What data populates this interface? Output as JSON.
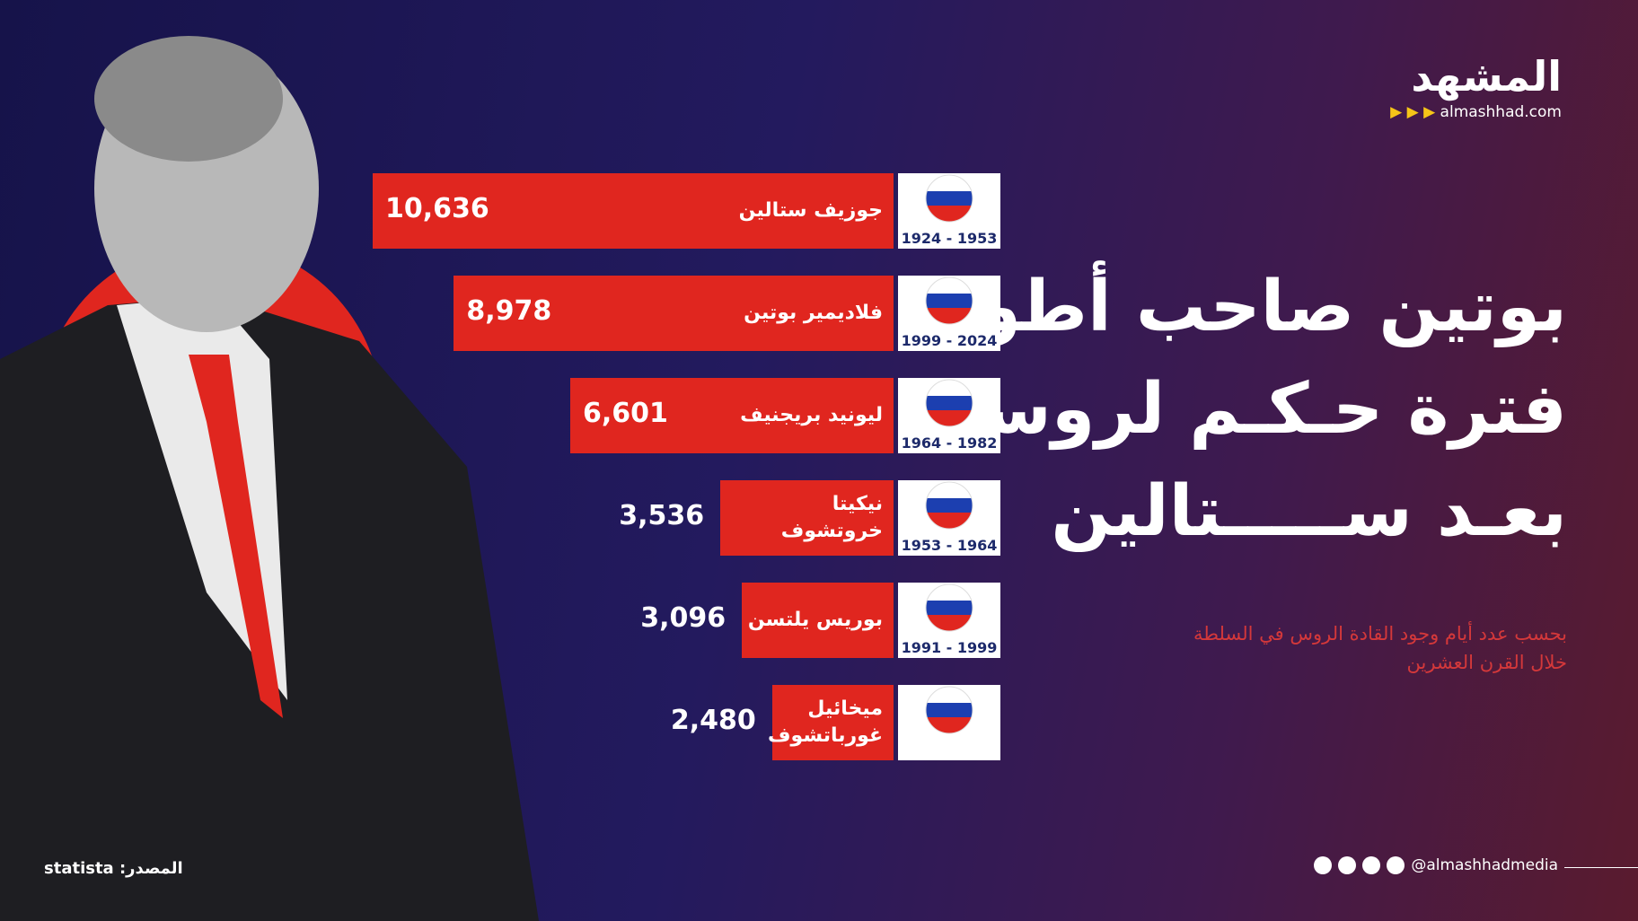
{
  "chart_data": {
    "type": "bar",
    "title": [
      "بوتين صاحب أطول",
      "فترة حـكـم لروسيا",
      "بعـد ســـــتالين"
    ],
    "subtitle": [
      "بحسب عدد أيام وجود القادة الروس في السلطة",
      "خلال القرن العشرين"
    ],
    "categories": [
      "جوزيف ستالين",
      "فلاديمير بوتين",
      "ليونيد بريجنيف",
      "نيكيتا خروتشوف",
      "بوريس يلتسن",
      "ميخائيل غورباتشوف"
    ],
    "periods": [
      "1924 - 1953",
      "1999 - 2024",
      "1964 - 1982",
      "1953 - 1964",
      "1991 - 1999",
      null
    ],
    "values": [
      10636,
      8978,
      6601,
      3536,
      3096,
      2480
    ],
    "value_labels": [
      "10,636",
      "8,978",
      "6,601",
      "3,536",
      "3,096",
      "2,480"
    ],
    "color": "#e0261f"
  },
  "header": {
    "logo": "المشهد",
    "site": "almashhad.com"
  },
  "footer": {
    "source": "المصدر: statista",
    "handle": "@almashhadmedia"
  }
}
